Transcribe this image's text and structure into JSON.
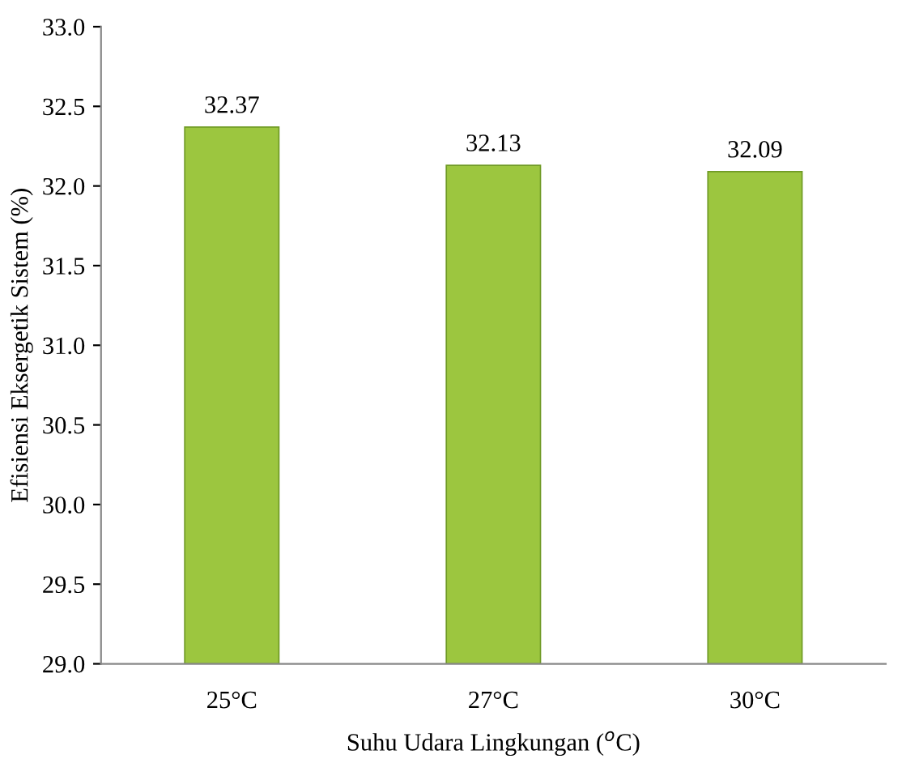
{
  "chart_data": {
    "type": "bar",
    "xlabel": "Suhu Udara Lingkungan ($^{o}$C)",
    "ylabel": "Efisiensi Eksergetik Sistem (%)",
    "categories": [
      "25°C",
      "27°C",
      "30°C"
    ],
    "values": [
      32.37,
      32.13,
      32.09
    ],
    "color": "#9cc63f",
    "ylim": [
      29.0,
      33.0
    ],
    "yticks": [
      {
        "value": 29.0,
        "label": "29.0"
      },
      29.5,
      {
        "value": 30.0,
        "label": "30.0"
      },
      30.5,
      {
        "value": 31.0,
        "label": "31.0"
      },
      31.5,
      {
        "value": 32.0,
        "label": "32.0"
      },
      32.5,
      {
        "value": 33.0,
        "label": "33.0"
      }
    ],
    "grid": false,
    "data_labels": true
  }
}
